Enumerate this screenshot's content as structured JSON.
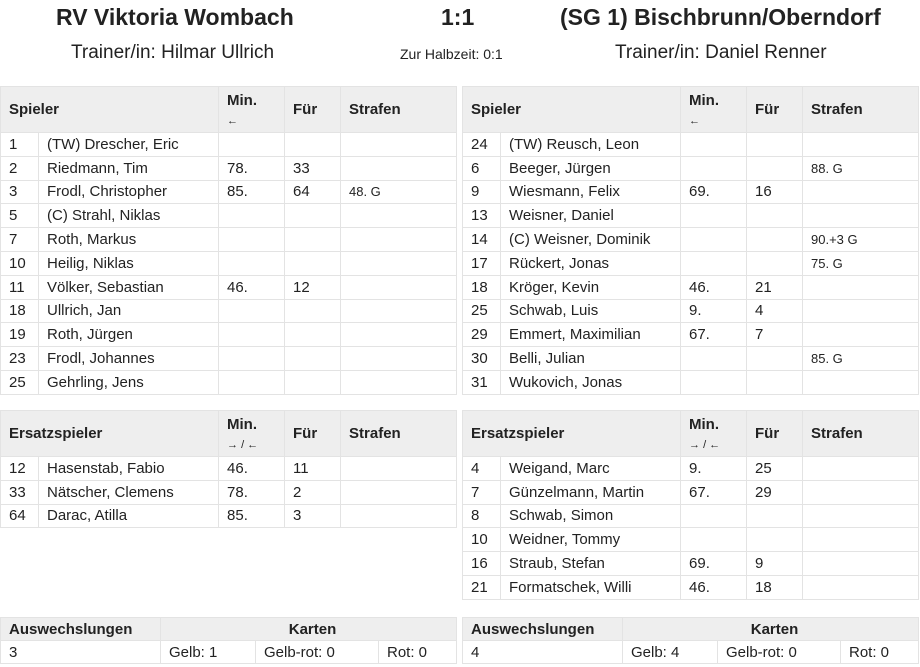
{
  "match": {
    "home": "RV Viktoria Wombach",
    "score": "1:1",
    "away": "(SG 1) Bischbrunn/Oberndorf",
    "home_coach": "Trainer/in: Hilmar Ullrich",
    "halftime": "Zur Halbzeit: 0:1",
    "away_coach": "Trainer/in: Daniel Renner"
  },
  "headers": {
    "players": "Spieler",
    "subs": "Ersatzspieler",
    "min": "Min.",
    "arrow_out": "←",
    "arrow_inout": "→ / ←",
    "fuer": "Für",
    "strafen": "Strafen",
    "changes": "Auswechslungen",
    "cards": "Karten"
  },
  "home": {
    "players": [
      [
        "1",
        "(TW) Drescher, Eric",
        "",
        "",
        ""
      ],
      [
        "2",
        "Riedmann, Tim",
        "78.",
        "33",
        ""
      ],
      [
        "3",
        "Frodl, Christopher",
        "85.",
        "64",
        "48. G"
      ],
      [
        "5",
        "(C) Strahl, Niklas",
        "",
        "",
        ""
      ],
      [
        "7",
        "Roth, Markus",
        "",
        "",
        ""
      ],
      [
        "10",
        "Heilig, Niklas",
        "",
        "",
        ""
      ],
      [
        "11",
        "Völker, Sebastian",
        "46.",
        "12",
        ""
      ],
      [
        "18",
        "Ullrich, Jan",
        "",
        "",
        ""
      ],
      [
        "19",
        "Roth, Jürgen",
        "",
        "",
        ""
      ],
      [
        "23",
        "Frodl, Johannes",
        "",
        "",
        ""
      ],
      [
        "25",
        "Gehrling, Jens",
        "",
        "",
        ""
      ]
    ],
    "subs": [
      [
        "12",
        "Hasenstab, Fabio",
        "46.",
        "11",
        ""
      ],
      [
        "33",
        "Nätscher, Clemens",
        "78.",
        "2",
        ""
      ],
      [
        "64",
        "Darac, Atilla",
        "85.",
        "3",
        ""
      ]
    ],
    "summary": {
      "changes": "3",
      "yellow": "Gelb: 1",
      "yellowred": "Gelb-rot: 0",
      "red": "Rot: 0"
    }
  },
  "away": {
    "players": [
      [
        "24",
        "(TW) Reusch, Leon",
        "",
        "",
        ""
      ],
      [
        "6",
        "Beeger, Jürgen",
        "",
        "",
        "88. G"
      ],
      [
        "9",
        "Wiesmann, Felix",
        "69.",
        "16",
        ""
      ],
      [
        "13",
        "Weisner, Daniel",
        "",
        "",
        ""
      ],
      [
        "14",
        "(C) Weisner, Dominik",
        "",
        "",
        "90.+3 G"
      ],
      [
        "17",
        "Rückert, Jonas",
        "",
        "",
        "75. G"
      ],
      [
        "18",
        "Kröger, Kevin",
        "46.",
        "21",
        ""
      ],
      [
        "25",
        "Schwab, Luis",
        "9.",
        "4",
        ""
      ],
      [
        "29",
        "Emmert, Maximilian",
        "67.",
        "7",
        ""
      ],
      [
        "30",
        "Belli, Julian",
        "",
        "",
        "85. G"
      ],
      [
        "31",
        "Wukovich, Jonas",
        "",
        "",
        ""
      ]
    ],
    "subs": [
      [
        "4",
        "Weigand, Marc",
        "9.",
        "25",
        ""
      ],
      [
        "7",
        "Günzelmann, Martin",
        "67.",
        "29",
        ""
      ],
      [
        "8",
        "Schwab, Simon",
        "",
        "",
        ""
      ],
      [
        "10",
        "Weidner, Tommy",
        "",
        "",
        ""
      ],
      [
        "16",
        "Straub, Stefan",
        "69.",
        "9",
        ""
      ],
      [
        "21",
        "Formatschek, Willi",
        "46.",
        "18",
        ""
      ]
    ],
    "summary": {
      "changes": "4",
      "yellow": "Gelb: 4",
      "yellowred": "Gelb-rot: 0",
      "red": "Rot: 0"
    }
  }
}
